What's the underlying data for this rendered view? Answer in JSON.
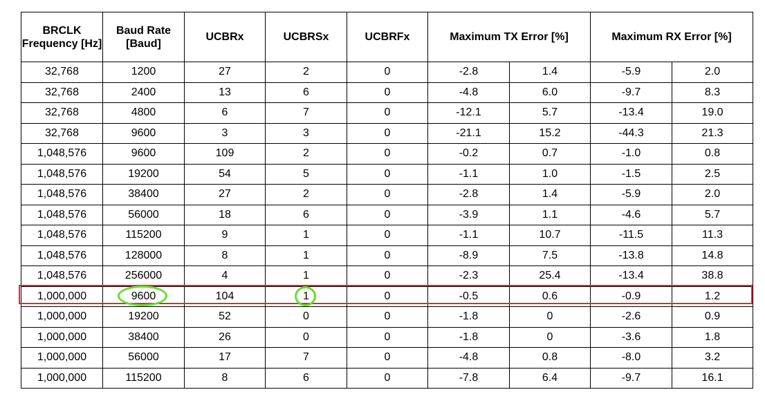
{
  "table": {
    "headers": {
      "brclk": "BRCLK Frequency [Hz]",
      "baud": "Baud Rate [Baud]",
      "ucbrx": "UCBRx",
      "ucbrsx": "UCBRSx",
      "ucbrfx": "UCBRFx",
      "tx_error": "Maximum TX Error [%]",
      "rx_error": "Maximum RX Error [%]"
    },
    "rows": [
      [
        "32,768",
        "1200",
        "27",
        "2",
        "0",
        "-2.8",
        "1.4",
        "-5.9",
        "2.0"
      ],
      [
        "32,768",
        "2400",
        "13",
        "6",
        "0",
        "-4.8",
        "6.0",
        "-9.7",
        "8.3"
      ],
      [
        "32,768",
        "4800",
        "6",
        "7",
        "0",
        "-12.1",
        "5.7",
        "-13.4",
        "19.0"
      ],
      [
        "32,768",
        "9600",
        "3",
        "3",
        "0",
        "-21.1",
        "15.2",
        "-44.3",
        "21.3"
      ],
      [
        "1,048,576",
        "9600",
        "109",
        "2",
        "0",
        "-0.2",
        "0.7",
        "-1.0",
        "0.8"
      ],
      [
        "1,048,576",
        "19200",
        "54",
        "5",
        "0",
        "-1.1",
        "1.0",
        "-1.5",
        "2.5"
      ],
      [
        "1,048,576",
        "38400",
        "27",
        "2",
        "0",
        "-2.8",
        "1.4",
        "-5.9",
        "2.0"
      ],
      [
        "1,048,576",
        "56000",
        "18",
        "6",
        "0",
        "-3.9",
        "1.1",
        "-4.6",
        "5.7"
      ],
      [
        "1,048,576",
        "115200",
        "9",
        "1",
        "0",
        "-1.1",
        "10.7",
        "-11.5",
        "11.3"
      ],
      [
        "1,048,576",
        "128000",
        "8",
        "1",
        "0",
        "-8.9",
        "7.5",
        "-13.8",
        "14.8"
      ],
      [
        "1,048,576",
        "256000",
        "4",
        "1",
        "0",
        "-2.3",
        "25.4",
        "-13.4",
        "38.8"
      ],
      [
        "1,000,000",
        "9600",
        "104",
        "1",
        "0",
        "-0.5",
        "0.6",
        "-0.9",
        "1.2"
      ],
      [
        "1,000,000",
        "19200",
        "52",
        "0",
        "0",
        "-1.8",
        "0",
        "-2.6",
        "0.9"
      ],
      [
        "1,000,000",
        "38400",
        "26",
        "0",
        "0",
        "-1.8",
        "0",
        "-3.6",
        "1.8"
      ],
      [
        "1,000,000",
        "56000",
        "17",
        "7",
        "0",
        "-4.8",
        "0.8",
        "-8.0",
        "3.2"
      ],
      [
        "1,000,000",
        "115200",
        "8",
        "6",
        "0",
        "-7.8",
        "6.4",
        "-9.7",
        "16.1"
      ]
    ]
  },
  "annotations": {
    "highlight_row_color": "#e8262b",
    "circle_color": "#66dd33"
  }
}
